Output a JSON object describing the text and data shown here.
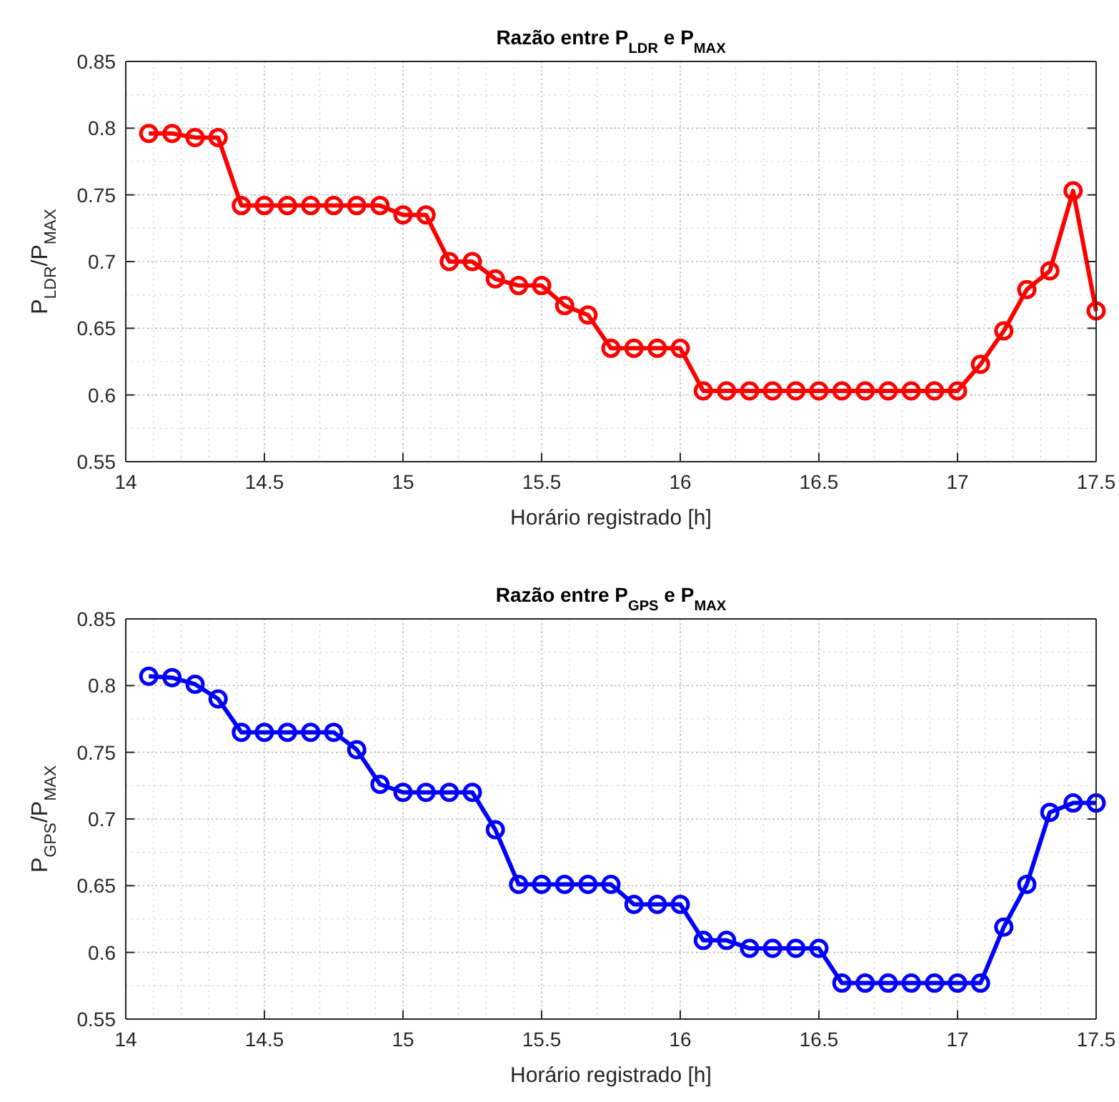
{
  "chart_data": [
    {
      "type": "line",
      "title": "Razão entre P$_{LDR}$ e P$_{MAX}$",
      "xlabel": "Horário registrado [h]",
      "ylabel": "P$_{LDR}$/P$_{MAX}$",
      "x": [
        14.083,
        14.167,
        14.25,
        14.333,
        14.417,
        14.5,
        14.583,
        14.667,
        14.75,
        14.833,
        14.917,
        15.0,
        15.083,
        15.167,
        15.25,
        15.333,
        15.417,
        15.5,
        15.583,
        15.667,
        15.75,
        15.833,
        15.917,
        16.0,
        16.083,
        16.167,
        16.25,
        16.333,
        16.417,
        16.5,
        16.583,
        16.667,
        16.75,
        16.833,
        16.917,
        17.0,
        17.083,
        17.167,
        17.25,
        17.333,
        17.417,
        17.5
      ],
      "series": [
        {
          "color": "#ff0000",
          "values": [
            0.796,
            0.796,
            0.793,
            0.793,
            0.742,
            0.742,
            0.742,
            0.742,
            0.742,
            0.742,
            0.742,
            0.735,
            0.735,
            0.7,
            0.7,
            0.687,
            0.682,
            0.682,
            0.667,
            0.66,
            0.635,
            0.635,
            0.635,
            0.635,
            0.603,
            0.603,
            0.603,
            0.603,
            0.603,
            0.603,
            0.603,
            0.603,
            0.603,
            0.603,
            0.603,
            0.603,
            0.623,
            0.648,
            0.679,
            0.693,
            0.753,
            0.663
          ]
        }
      ],
      "xlim": [
        14,
        17.5
      ],
      "xticks": [
        14,
        14.5,
        15,
        15.5,
        16,
        16.5,
        17,
        17.5
      ],
      "ylim": [
        0.55,
        0.85
      ],
      "yticks": [
        0.55,
        0.6,
        0.65,
        0.7,
        0.75,
        0.8,
        0.85
      ],
      "grid": true,
      "marker": "circle",
      "line_style": "solid"
    },
    {
      "type": "line",
      "title": "Razão entre P$_{GPS}$ e P$_{MAX}$",
      "xlabel": "Horário registrado [h]",
      "ylabel": "P$_{GPS}$/P$_{MAX}$",
      "x": [
        14.083,
        14.167,
        14.25,
        14.333,
        14.417,
        14.5,
        14.583,
        14.667,
        14.75,
        14.833,
        14.917,
        15.0,
        15.083,
        15.167,
        15.25,
        15.333,
        15.417,
        15.5,
        15.583,
        15.667,
        15.75,
        15.833,
        15.917,
        16.0,
        16.083,
        16.167,
        16.25,
        16.333,
        16.417,
        16.5,
        16.583,
        16.667,
        16.75,
        16.833,
        16.917,
        17.0,
        17.083,
        17.167,
        17.25,
        17.333,
        17.417,
        17.5
      ],
      "series": [
        {
          "color": "#0000ff",
          "values": [
            0.807,
            0.806,
            0.801,
            0.79,
            0.765,
            0.765,
            0.765,
            0.765,
            0.765,
            0.752,
            0.726,
            0.72,
            0.72,
            0.72,
            0.72,
            0.692,
            0.651,
            0.651,
            0.651,
            0.651,
            0.651,
            0.636,
            0.636,
            0.636,
            0.609,
            0.609,
            0.603,
            0.603,
            0.603,
            0.603,
            0.577,
            0.577,
            0.577,
            0.577,
            0.577,
            0.577,
            0.577,
            0.619,
            0.651,
            0.705,
            0.712,
            0.712
          ]
        }
      ],
      "xlim": [
        14,
        17.5
      ],
      "xticks": [
        14,
        14.5,
        15,
        15.5,
        16,
        16.5,
        17,
        17.5
      ],
      "ylim": [
        0.55,
        0.85
      ],
      "yticks": [
        0.55,
        0.6,
        0.65,
        0.7,
        0.75,
        0.8,
        0.85
      ],
      "grid": true,
      "marker": "circle",
      "line_style": "solid"
    }
  ]
}
